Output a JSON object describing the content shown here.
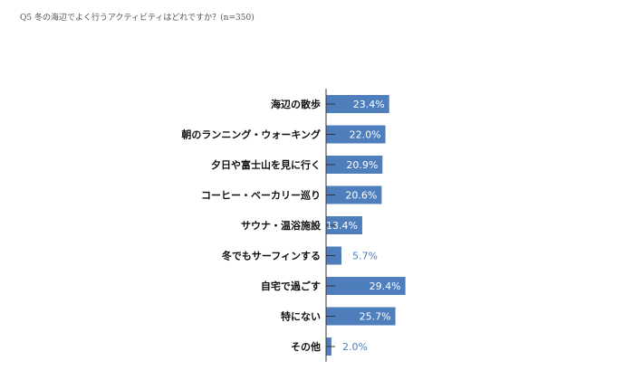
{
  "colors": {
    "bar": "#4f7ebd",
    "label_inside": "#ffffff",
    "label_outside": "#4f7ebd",
    "axis": "#333333"
  },
  "chart_data": {
    "type": "bar",
    "orientation": "horizontal",
    "title": "Q5 冬の海辺でよく行うアクティビティはどれですか？(n=350)",
    "xlabel": "",
    "ylabel": "",
    "categories": [
      "海辺の散歩",
      "朝のランニング・ウォーキング",
      "夕日や富士山を見に行く",
      "コーヒー・ベーカリー巡り",
      "サウナ・温浴施設",
      "冬でもサーフィンする",
      "自宅で過ごす",
      "特にない",
      "その他"
    ],
    "values": [
      23.4,
      22.0,
      20.9,
      20.6,
      13.4,
      5.7,
      29.4,
      25.7,
      2.0
    ],
    "value_labels": [
      "23.4%",
      "22.0%",
      "20.9%",
      "20.6%",
      "13.4%",
      "5.7%",
      "29.4%",
      "25.7%",
      "2.0%"
    ],
    "xlim": [
      0,
      100
    ],
    "grid": false,
    "legend": "none"
  }
}
